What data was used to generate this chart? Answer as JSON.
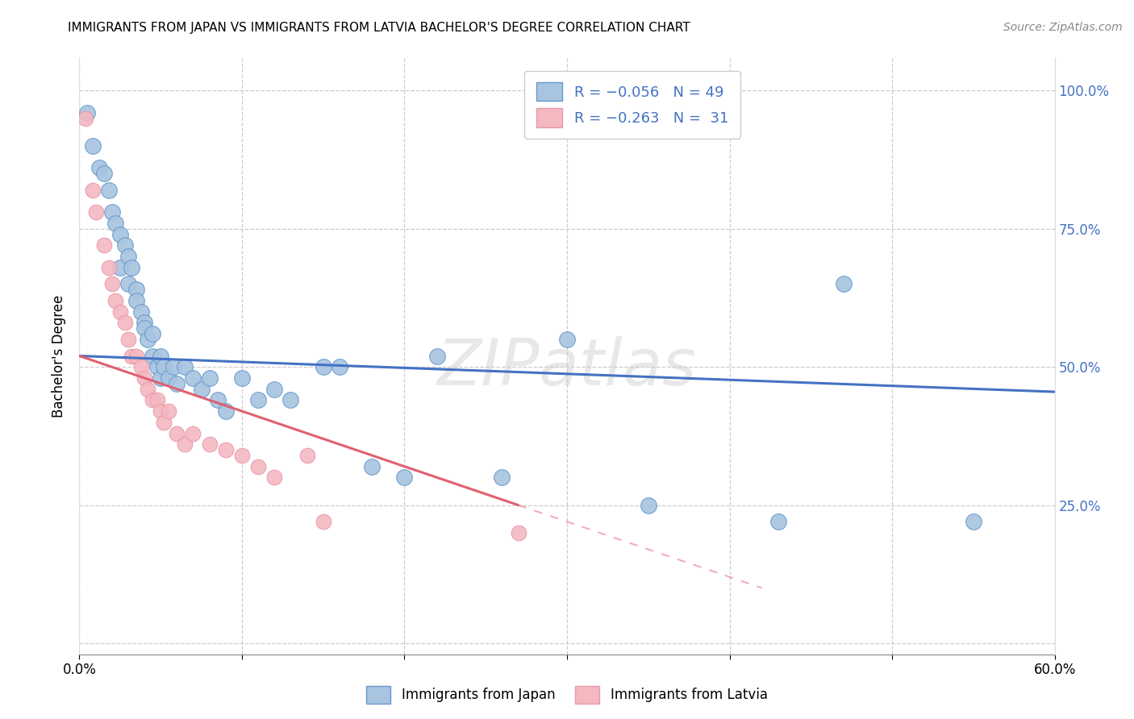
{
  "title": "IMMIGRANTS FROM JAPAN VS IMMIGRANTS FROM LATVIA BACHELOR'S DEGREE CORRELATION CHART",
  "source": "Source: ZipAtlas.com",
  "ylabel": "Bachelor's Degree",
  "ytick_vals": [
    0.0,
    0.25,
    0.5,
    0.75,
    1.0
  ],
  "ytick_labels": [
    "",
    "25.0%",
    "50.0%",
    "75.0%",
    "100.0%"
  ],
  "ytick_labels_right": [
    "",
    "25.0%",
    "50.0%",
    "75.0%",
    "100.0%"
  ],
  "xmin": 0.0,
  "xmax": 0.6,
  "ymin": -0.02,
  "ymax": 1.06,
  "watermark": "ZIPatlas",
  "japan_color": "#a8c4e0",
  "latvia_color": "#f4b8c1",
  "japan_edge_color": "#6699cc",
  "latvia_edge_color": "#e899aa",
  "japan_line_color": "#4472c4",
  "latvia_line_color": "#e06070",
  "legend_text_color": "#4472c4",
  "japan_scatter_x": [
    0.005,
    0.008,
    0.012,
    0.015,
    0.018,
    0.02,
    0.022,
    0.025,
    0.025,
    0.028,
    0.03,
    0.03,
    0.032,
    0.035,
    0.035,
    0.038,
    0.04,
    0.04,
    0.042,
    0.045,
    0.045,
    0.048,
    0.05,
    0.05,
    0.052,
    0.055,
    0.058,
    0.06,
    0.065,
    0.07,
    0.075,
    0.08,
    0.085,
    0.09,
    0.1,
    0.11,
    0.12,
    0.13,
    0.15,
    0.16,
    0.18,
    0.2,
    0.22,
    0.26,
    0.3,
    0.35,
    0.43,
    0.47,
    0.55
  ],
  "japan_scatter_y": [
    0.96,
    0.9,
    0.86,
    0.85,
    0.82,
    0.78,
    0.76,
    0.74,
    0.68,
    0.72,
    0.7,
    0.65,
    0.68,
    0.64,
    0.62,
    0.6,
    0.58,
    0.57,
    0.55,
    0.56,
    0.52,
    0.5,
    0.52,
    0.48,
    0.5,
    0.48,
    0.5,
    0.47,
    0.5,
    0.48,
    0.46,
    0.48,
    0.44,
    0.42,
    0.48,
    0.44,
    0.46,
    0.44,
    0.5,
    0.5,
    0.32,
    0.3,
    0.52,
    0.3,
    0.55,
    0.25,
    0.22,
    0.65,
    0.22
  ],
  "latvia_scatter_x": [
    0.004,
    0.008,
    0.01,
    0.015,
    0.018,
    0.02,
    0.022,
    0.025,
    0.028,
    0.03,
    0.032,
    0.035,
    0.038,
    0.04,
    0.042,
    0.045,
    0.048,
    0.05,
    0.052,
    0.055,
    0.06,
    0.065,
    0.07,
    0.08,
    0.09,
    0.1,
    0.11,
    0.12,
    0.14,
    0.15,
    0.27
  ],
  "latvia_scatter_y": [
    0.95,
    0.82,
    0.78,
    0.72,
    0.68,
    0.65,
    0.62,
    0.6,
    0.58,
    0.55,
    0.52,
    0.52,
    0.5,
    0.48,
    0.46,
    0.44,
    0.44,
    0.42,
    0.4,
    0.42,
    0.38,
    0.36,
    0.38,
    0.36,
    0.35,
    0.34,
    0.32,
    0.3,
    0.34,
    0.22,
    0.2
  ],
  "japan_line_x0": 0.0,
  "japan_line_x1": 0.6,
  "japan_line_y0": 0.52,
  "japan_line_y1": 0.455,
  "latvia_line_x0": 0.0,
  "latvia_line_x1": 0.42,
  "latvia_line_y0": 0.52,
  "latvia_line_y1": 0.1
}
